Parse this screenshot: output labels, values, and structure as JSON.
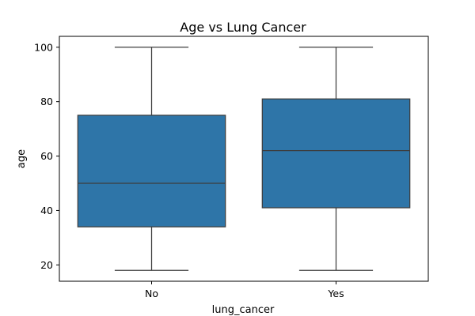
{
  "chart_data": {
    "type": "box",
    "title": "Age vs Lung Cancer",
    "xlabel": "lung_cancer",
    "ylabel": "age",
    "categories": [
      "No",
      "Yes"
    ],
    "boxes": [
      {
        "category": "No",
        "whisker_low": 18,
        "q1": 34,
        "median": 50,
        "q3": 75,
        "whisker_high": 100
      },
      {
        "category": "Yes",
        "whisker_low": 18,
        "q1": 41,
        "median": 62,
        "q3": 81,
        "whisker_high": 100
      }
    ],
    "ylim": [
      14,
      104
    ],
    "yticks": [
      20,
      40,
      60,
      80,
      100
    ],
    "grid": false,
    "color": "#2e75a8"
  }
}
